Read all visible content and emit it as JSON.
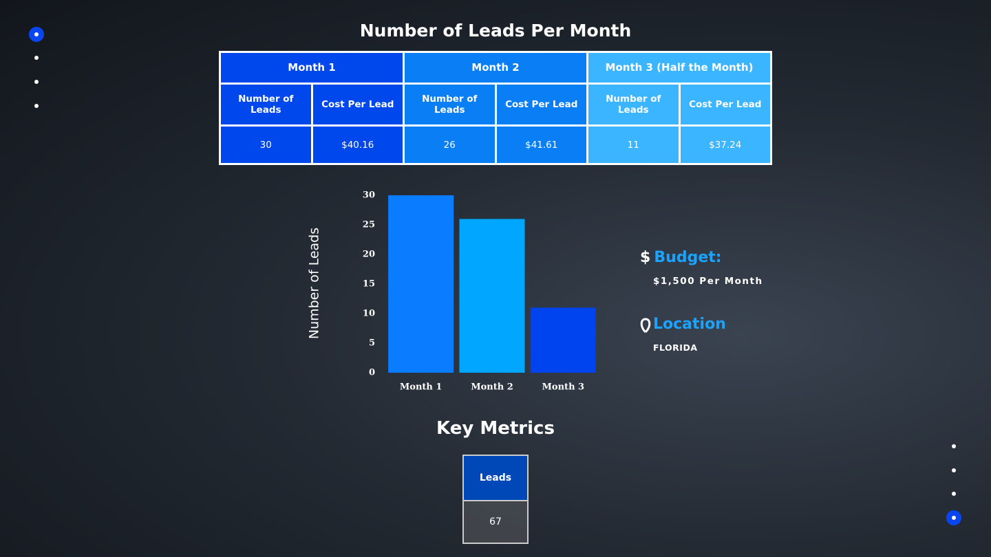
{
  "title": "Number of Leads Per Month",
  "table": {
    "headers": [
      "Month 1",
      "Month 2",
      "Month 3 (Half the Month)"
    ],
    "subheaders": [
      "Number of Leads",
      "Cost Per Lead",
      "Number of Leads",
      "Cost Per Lead",
      "Number of Leads",
      "Cost Per Lead"
    ],
    "rows": [
      [
        "30",
        "$40.16",
        "26",
        "$41.61",
        "11",
        "$37.24"
      ]
    ]
  },
  "chart_data": {
    "type": "bar",
    "ylabel": "Number of Leads",
    "categories": [
      "Month 1",
      "Month 2",
      "Month 3"
    ],
    "values": [
      30,
      26,
      11
    ],
    "colors": [
      "#0a7cff",
      "#00a6ff",
      "#0044f0"
    ],
    "ylim": [
      0,
      30
    ],
    "yticks": [
      0,
      5,
      10,
      15,
      20,
      25,
      30
    ],
    "grid": false
  },
  "budget": {
    "symbol": "$",
    "label": "Budget:",
    "value": "$1,500 Per Month"
  },
  "location": {
    "label": "Location",
    "value": "FLORIDA"
  },
  "key_metrics": {
    "title": "Key Metrics",
    "header": "Leads",
    "value": "67"
  }
}
